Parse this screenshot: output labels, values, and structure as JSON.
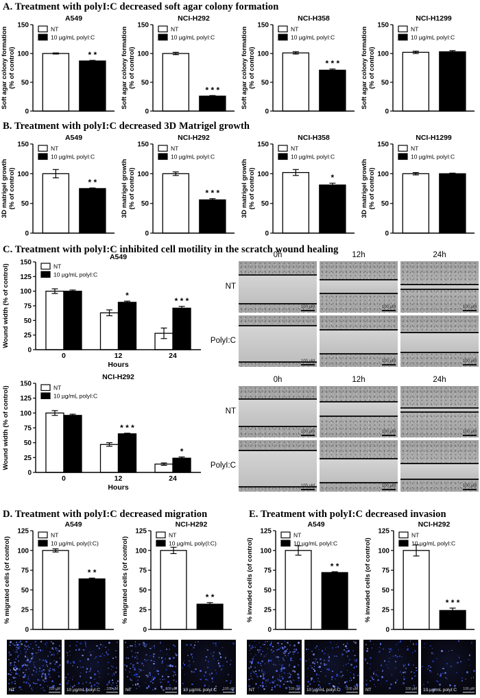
{
  "panels": {
    "A": {
      "title": "A. Treatment with polyI:C  decreased soft agar colony formation"
    },
    "B": {
      "title": "B. Treatment with polyI:C  decreased 3D Matrigel growth"
    },
    "C": {
      "title": "C. Treatment with polyI:C  inhibited cell motility in the scratch wound healing"
    },
    "D": {
      "title": "D. Treatment with polyI:C  decreased migration"
    },
    "E": {
      "title": "E. Treatment with polyI:C  decreased invasion"
    }
  },
  "colors": {
    "bar_nt": "#ffffff",
    "bar_treated": "#000000",
    "axis": "#000000",
    "dapi_blue": "#3d55e0"
  },
  "chart_data": [
    {
      "panel": "A",
      "title": "A549",
      "type": "bar",
      "ylabel": [
        "Soft agar colony formation",
        "(% of control)"
      ],
      "ylim": [
        0,
        150
      ],
      "yticks": [
        0,
        50,
        100,
        150
      ],
      "categories": [
        ""
      ],
      "series": [
        {
          "name": "NT",
          "fill": "#ffffff",
          "values": [
            100
          ],
          "errors": [
            1
          ],
          "sig": [
            ""
          ]
        },
        {
          "name": "10 µg/mL polyI:C",
          "fill": "#000000",
          "values": [
            87
          ],
          "errors": [
            1
          ],
          "sig": [
            "**"
          ]
        }
      ]
    },
    {
      "panel": "A",
      "title": "NCI-H292",
      "type": "bar",
      "ylabel": [
        "Soft agar colony formation",
        "(% of control)"
      ],
      "ylim": [
        0,
        150
      ],
      "yticks": [
        0,
        50,
        100,
        150
      ],
      "categories": [
        ""
      ],
      "series": [
        {
          "name": "NT",
          "fill": "#ffffff",
          "values": [
            100
          ],
          "errors": [
            2
          ],
          "sig": [
            ""
          ]
        },
        {
          "name": "10 µg/mL polyI:C",
          "fill": "#000000",
          "values": [
            26
          ],
          "errors": [
            1
          ],
          "sig": [
            "***"
          ]
        }
      ]
    },
    {
      "panel": "A",
      "title": "NCI-H358",
      "type": "bar",
      "ylabel": [
        "Soft agar colony formation",
        "(% of control)"
      ],
      "ylim": [
        0,
        150
      ],
      "yticks": [
        0,
        50,
        100,
        150
      ],
      "categories": [
        ""
      ],
      "series": [
        {
          "name": "NT",
          "fill": "#ffffff",
          "values": [
            101
          ],
          "errors": [
            2
          ],
          "sig": [
            ""
          ]
        },
        {
          "name": "10 µg/mL polyI:C",
          "fill": "#000000",
          "values": [
            71
          ],
          "errors": [
            2
          ],
          "sig": [
            "***"
          ]
        }
      ]
    },
    {
      "panel": "A",
      "title": "NCI-H1299",
      "type": "bar",
      "ylabel": [
        "Soft agar colony formation",
        "(% of control)"
      ],
      "ylim": [
        0,
        150
      ],
      "yticks": [
        0,
        50,
        100,
        150
      ],
      "categories": [
        ""
      ],
      "series": [
        {
          "name": "NT",
          "fill": "#ffffff",
          "values": [
            102
          ],
          "errors": [
            2
          ],
          "sig": [
            ""
          ]
        },
        {
          "name": "10 µg/mL polyI:C",
          "fill": "#000000",
          "values": [
            103
          ],
          "errors": [
            2
          ],
          "sig": [
            ""
          ]
        }
      ]
    },
    {
      "panel": "B",
      "title": "A549",
      "type": "bar",
      "ylabel": [
        "3D matrigel growth",
        "(% of control)"
      ],
      "ylim": [
        0,
        150
      ],
      "yticks": [
        0,
        50,
        100,
        150
      ],
      "categories": [
        ""
      ],
      "series": [
        {
          "name": "NT",
          "fill": "#ffffff",
          "values": [
            100
          ],
          "errors": [
            7
          ],
          "sig": [
            ""
          ]
        },
        {
          "name": "10 µg/mL polyI:C",
          "fill": "#000000",
          "values": [
            75
          ],
          "errors": [
            1
          ],
          "sig": [
            "**"
          ]
        }
      ]
    },
    {
      "panel": "B",
      "title": "NCI-H292",
      "type": "bar",
      "ylabel": [
        "3D matrigel growth",
        "(% of control)"
      ],
      "ylim": [
        0,
        150
      ],
      "yticks": [
        0,
        50,
        100,
        150
      ],
      "categories": [
        ""
      ],
      "series": [
        {
          "name": "NT",
          "fill": "#ffffff",
          "values": [
            100
          ],
          "errors": [
            3
          ],
          "sig": [
            ""
          ]
        },
        {
          "name": "10 µg/mL polyI:C",
          "fill": "#000000",
          "values": [
            56
          ],
          "errors": [
            2
          ],
          "sig": [
            "***"
          ]
        }
      ]
    },
    {
      "panel": "B",
      "title": "NCI-H358",
      "type": "bar",
      "ylabel": [
        "3D matrigel growth",
        "(% of control)"
      ],
      "ylim": [
        0,
        150
      ],
      "yticks": [
        0,
        50,
        100,
        150
      ],
      "categories": [
        ""
      ],
      "series": [
        {
          "name": "NT",
          "fill": "#ffffff",
          "values": [
            102
          ],
          "errors": [
            5
          ],
          "sig": [
            ""
          ]
        },
        {
          "name": "10 µg/mL polyI:C",
          "fill": "#000000",
          "values": [
            81
          ],
          "errors": [
            3
          ],
          "sig": [
            "*"
          ]
        }
      ]
    },
    {
      "panel": "B",
      "title": "NCI-H1299",
      "type": "bar",
      "ylabel": [
        "3D matrigel growth",
        "(% of control)"
      ],
      "ylim": [
        0,
        150
      ],
      "yticks": [
        0,
        50,
        100,
        150
      ],
      "categories": [
        ""
      ],
      "series": [
        {
          "name": "NT",
          "fill": "#ffffff",
          "values": [
            100
          ],
          "errors": [
            2
          ],
          "sig": [
            ""
          ]
        },
        {
          "name": "10 µg/mL polyI:C",
          "fill": "#000000",
          "values": [
            100
          ],
          "errors": [
            1
          ],
          "sig": [
            ""
          ]
        }
      ]
    },
    {
      "panel": "C",
      "title": "A549",
      "type": "bar",
      "ylabel": [
        "Wound width (% of control)"
      ],
      "ylim": [
        0,
        150
      ],
      "yticks": [
        0,
        25,
        50,
        75,
        100,
        125,
        150
      ],
      "categories": [
        "0",
        "12",
        "24"
      ],
      "xlabel": "Hours",
      "series": [
        {
          "name": "NT",
          "fill": "#ffffff",
          "values": [
            100,
            63,
            28
          ],
          "errors": [
            4,
            5,
            9
          ],
          "sig": [
            "",
            "",
            ""
          ]
        },
        {
          "name": "10 µg/mL polyI:C",
          "fill": "#000000",
          "values": [
            100,
            81,
            71
          ],
          "errors": [
            2,
            2,
            3
          ],
          "sig": [
            "",
            "*",
            "***"
          ]
        }
      ]
    },
    {
      "panel": "C",
      "title": "NCI-H292",
      "type": "bar",
      "ylabel": [
        "Wound width (% of control)"
      ],
      "ylim": [
        0,
        150
      ],
      "yticks": [
        0,
        25,
        50,
        75,
        100,
        125,
        150
      ],
      "categories": [
        "0",
        "12",
        "24"
      ],
      "xlabel": "Hours",
      "series": [
        {
          "name": "NT",
          "fill": "#ffffff",
          "values": [
            100,
            47,
            14
          ],
          "errors": [
            4,
            3,
            2
          ],
          "sig": [
            "",
            "",
            ""
          ]
        },
        {
          "name": "10 µg/mL polyI:C",
          "fill": "#000000",
          "values": [
            96,
            65,
            24
          ],
          "errors": [
            2,
            1,
            2
          ],
          "sig": [
            "",
            "***",
            "*"
          ]
        }
      ]
    },
    {
      "panel": "D",
      "title": "A549",
      "type": "bar",
      "ylabel": [
        "% migrated cells (of control)"
      ],
      "ylim": [
        0,
        125
      ],
      "yticks": [
        0,
        25,
        50,
        75,
        100,
        125
      ],
      "categories": [
        ""
      ],
      "series": [
        {
          "name": "NT",
          "fill": "#ffffff",
          "values": [
            100
          ],
          "errors": [
            2
          ],
          "sig": [
            ""
          ]
        },
        {
          "name": "10 µg/mL poly(I:C)",
          "fill": "#000000",
          "values": [
            64
          ],
          "errors": [
            1
          ],
          "sig": [
            "**"
          ]
        }
      ]
    },
    {
      "panel": "D",
      "title": "NCI-H292",
      "type": "bar",
      "ylabel": [
        "% migrated cells (of control)"
      ],
      "ylim": [
        0,
        125
      ],
      "yticks": [
        0,
        25,
        50,
        75,
        100,
        125
      ],
      "categories": [
        ""
      ],
      "series": [
        {
          "name": "NT",
          "fill": "#ffffff",
          "values": [
            100
          ],
          "errors": [
            4
          ],
          "sig": [
            ""
          ]
        },
        {
          "name": "10 µg/mL poly(I:C)",
          "fill": "#000000",
          "values": [
            32
          ],
          "errors": [
            2
          ],
          "sig": [
            "**"
          ]
        }
      ]
    },
    {
      "panel": "E",
      "title": "A549",
      "type": "bar",
      "ylabel": [
        "% invaded cells (of control)"
      ],
      "ylim": [
        0,
        125
      ],
      "yticks": [
        0,
        25,
        50,
        75,
        100,
        125
      ],
      "categories": [
        ""
      ],
      "series": [
        {
          "name": "NT",
          "fill": "#ffffff",
          "values": [
            100
          ],
          "errors": [
            6
          ],
          "sig": [
            ""
          ]
        },
        {
          "name": "10 µg/mL polyI:C",
          "fill": "#000000",
          "values": [
            72
          ],
          "errors": [
            1
          ],
          "sig": [
            "**"
          ]
        }
      ]
    },
    {
      "panel": "E",
      "title": "NCI-H292",
      "type": "bar",
      "ylabel": [
        "% invaded cells (of control)"
      ],
      "ylim": [
        0,
        125
      ],
      "yticks": [
        0,
        25,
        50,
        75,
        100,
        125
      ],
      "categories": [
        ""
      ],
      "series": [
        {
          "name": "NT",
          "fill": "#ffffff",
          "values": [
            100
          ],
          "errors": [
            7
          ],
          "sig": [
            ""
          ]
        },
        {
          "name": "10 µg/mL polyI:C",
          "fill": "#000000",
          "values": [
            24
          ],
          "errors": [
            3
          ],
          "sig": [
            "***"
          ]
        }
      ]
    }
  ],
  "wound_assay": {
    "col_headers": [
      "0h",
      "12h",
      "24h"
    ],
    "row_labels": [
      "NT",
      "PolyI:C"
    ],
    "scale_label": "100 µM",
    "grids": [
      {
        "cell_line": "A549",
        "rows": [
          [
            {
              "gap": [
                26,
                82
              ]
            },
            {
              "gap": [
                36,
                63
              ]
            },
            {
              "gap": [
                45,
                54
              ]
            }
          ],
          [
            {
              "gap": [
                20,
                90
              ]
            },
            {
              "gap": [
                28,
                74
              ]
            },
            {
              "gap": [
                33,
                72
              ]
            }
          ]
        ]
      },
      {
        "cell_line": "NCI-H292",
        "rows": [
          [
            {
              "gap": [
                25,
                79
              ]
            },
            {
              "gap": [
                31,
                58
              ]
            },
            {
              "gap": [
                43,
                51
              ]
            }
          ],
          [
            {
              "gap": [
                20,
                91
              ]
            },
            {
              "gap": [
                36,
                82
              ]
            },
            {
              "gap": [
                45,
                76
              ]
            }
          ]
        ]
      }
    ]
  },
  "micrographs": {
    "scale_label": "100 µM",
    "D": [
      {
        "label": "NT",
        "density": 230
      },
      {
        "label": "10 µg/mL polyI:C",
        "density": 130
      },
      {
        "label": "NT",
        "density": 160
      },
      {
        "label": "10 µg/mL polyI:C",
        "density": 85
      }
    ],
    "E": [
      {
        "label": "NT",
        "density": 210
      },
      {
        "label": "10 µg/mL polyI:C",
        "density": 140
      },
      {
        "label": "NT",
        "density": 95
      },
      {
        "label": "10 µg/mL polyI:C",
        "density": 60
      }
    ]
  }
}
